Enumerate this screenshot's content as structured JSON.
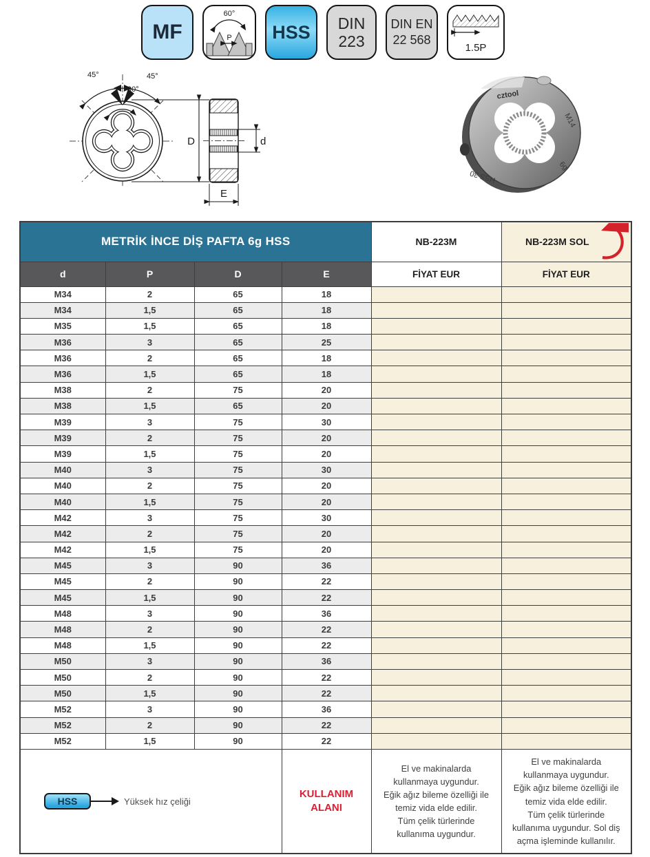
{
  "badges": {
    "mf_label": "MF",
    "thread_profile": {
      "angle": "60°",
      "pitch": "P"
    },
    "hss_label": "HSS",
    "din": {
      "line1": "DIN",
      "line2": "223"
    },
    "din_en": {
      "line1": "DIN EN",
      "line2": "22 568"
    },
    "lead": {
      "label": "1.5P"
    }
  },
  "diagram_labels": {
    "angle_left": "45°",
    "angle_right": "45°",
    "angle_center": "90°",
    "outer_diameter": "D",
    "thread_diameter": "d",
    "thickness": "E"
  },
  "photo_engravings": {
    "brand": "cztool",
    "size": "M14",
    "tolerance": "6g",
    "material": "HSS 30"
  },
  "table": {
    "title": "METRİK İNCE DİŞ PAFTA 6g HSS",
    "code_right": "NB-223M",
    "code_left": "NB-223M SOL",
    "price_header_right": "FİYAT EUR",
    "price_header_left": "FİYAT EUR",
    "col_headers": [
      "d",
      "P",
      "D",
      "E"
    ],
    "rows": [
      [
        "M34",
        "2",
        "65",
        "18"
      ],
      [
        "M34",
        "1,5",
        "65",
        "18"
      ],
      [
        "M35",
        "1,5",
        "65",
        "18"
      ],
      [
        "M36",
        "3",
        "65",
        "25"
      ],
      [
        "M36",
        "2",
        "65",
        "18"
      ],
      [
        "M36",
        "1,5",
        "65",
        "18"
      ],
      [
        "M38",
        "2",
        "75",
        "20"
      ],
      [
        "M38",
        "1,5",
        "65",
        "20"
      ],
      [
        "M39",
        "3",
        "75",
        "30"
      ],
      [
        "M39",
        "2",
        "75",
        "20"
      ],
      [
        "M39",
        "1,5",
        "75",
        "20"
      ],
      [
        "M40",
        "3",
        "75",
        "30"
      ],
      [
        "M40",
        "2",
        "75",
        "20"
      ],
      [
        "M40",
        "1,5",
        "75",
        "20"
      ],
      [
        "M42",
        "3",
        "75",
        "30"
      ],
      [
        "M42",
        "2",
        "75",
        "20"
      ],
      [
        "M42",
        "1,5",
        "75",
        "20"
      ],
      [
        "M45",
        "3",
        "90",
        "36"
      ],
      [
        "M45",
        "2",
        "90",
        "22"
      ],
      [
        "M45",
        "1,5",
        "90",
        "22"
      ],
      [
        "M48",
        "3",
        "90",
        "36"
      ],
      [
        "M48",
        "2",
        "90",
        "22"
      ],
      [
        "M48",
        "1,5",
        "90",
        "22"
      ],
      [
        "M50",
        "3",
        "90",
        "36"
      ],
      [
        "M50",
        "2",
        "90",
        "22"
      ],
      [
        "M50",
        "1,5",
        "90",
        "22"
      ],
      [
        "M52",
        "3",
        "90",
        "36"
      ],
      [
        "M52",
        "2",
        "90",
        "22"
      ],
      [
        "M52",
        "1,5",
        "90",
        "22"
      ]
    ]
  },
  "footer": {
    "hss_chip_label": "HSS",
    "hss_legend": "Yüksek hız çeliği",
    "usage_title": "KULLANIM\nALANI",
    "usage_right": "El ve makinalarda\nkullanmaya uygundur.\nEğik ağız bileme özelliği ile\ntemiz vida elde edilir.\nTüm çelik türlerinde\nkullanıma uygundur.",
    "usage_left": "El ve makinalarda\nkullanmaya uygundur.\nEğik ağız bileme özelliği ile\ntemiz vida elde edilir.\nTüm çelik türlerinde\nkullanıma uygundur. Sol diş\naçma işleminde kullanılır."
  },
  "colors": {
    "accent_teal": "#2b7394",
    "header_gray": "#58585a",
    "price_bg": "#f6f0dd",
    "row_stripe": "#ececec",
    "arrow_red": "#d3222a",
    "badge_light_blue": "#b9e2f8",
    "badge_cyan": "#29a7df"
  }
}
